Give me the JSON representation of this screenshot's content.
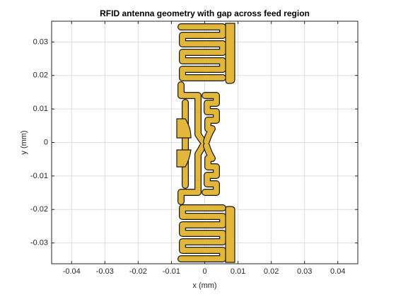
{
  "chart_data": {
    "type": "patch",
    "title": "RFID antenna geometry with gap across feed region",
    "x_label": "x (mm)",
    "y_label": "y (mm)",
    "xlim": [
      -0.046,
      0.046
    ],
    "ylim": [
      -0.0362,
      0.0362
    ],
    "xticks": [
      -0.04,
      -0.03,
      -0.02,
      -0.01,
      0,
      0.01,
      0.02,
      0.03,
      0.04
    ],
    "yticks": [
      -0.03,
      -0.02,
      -0.01,
      0,
      0.01,
      0.02,
      0.03
    ],
    "grid": true,
    "color": "#e3b73c"
  }
}
